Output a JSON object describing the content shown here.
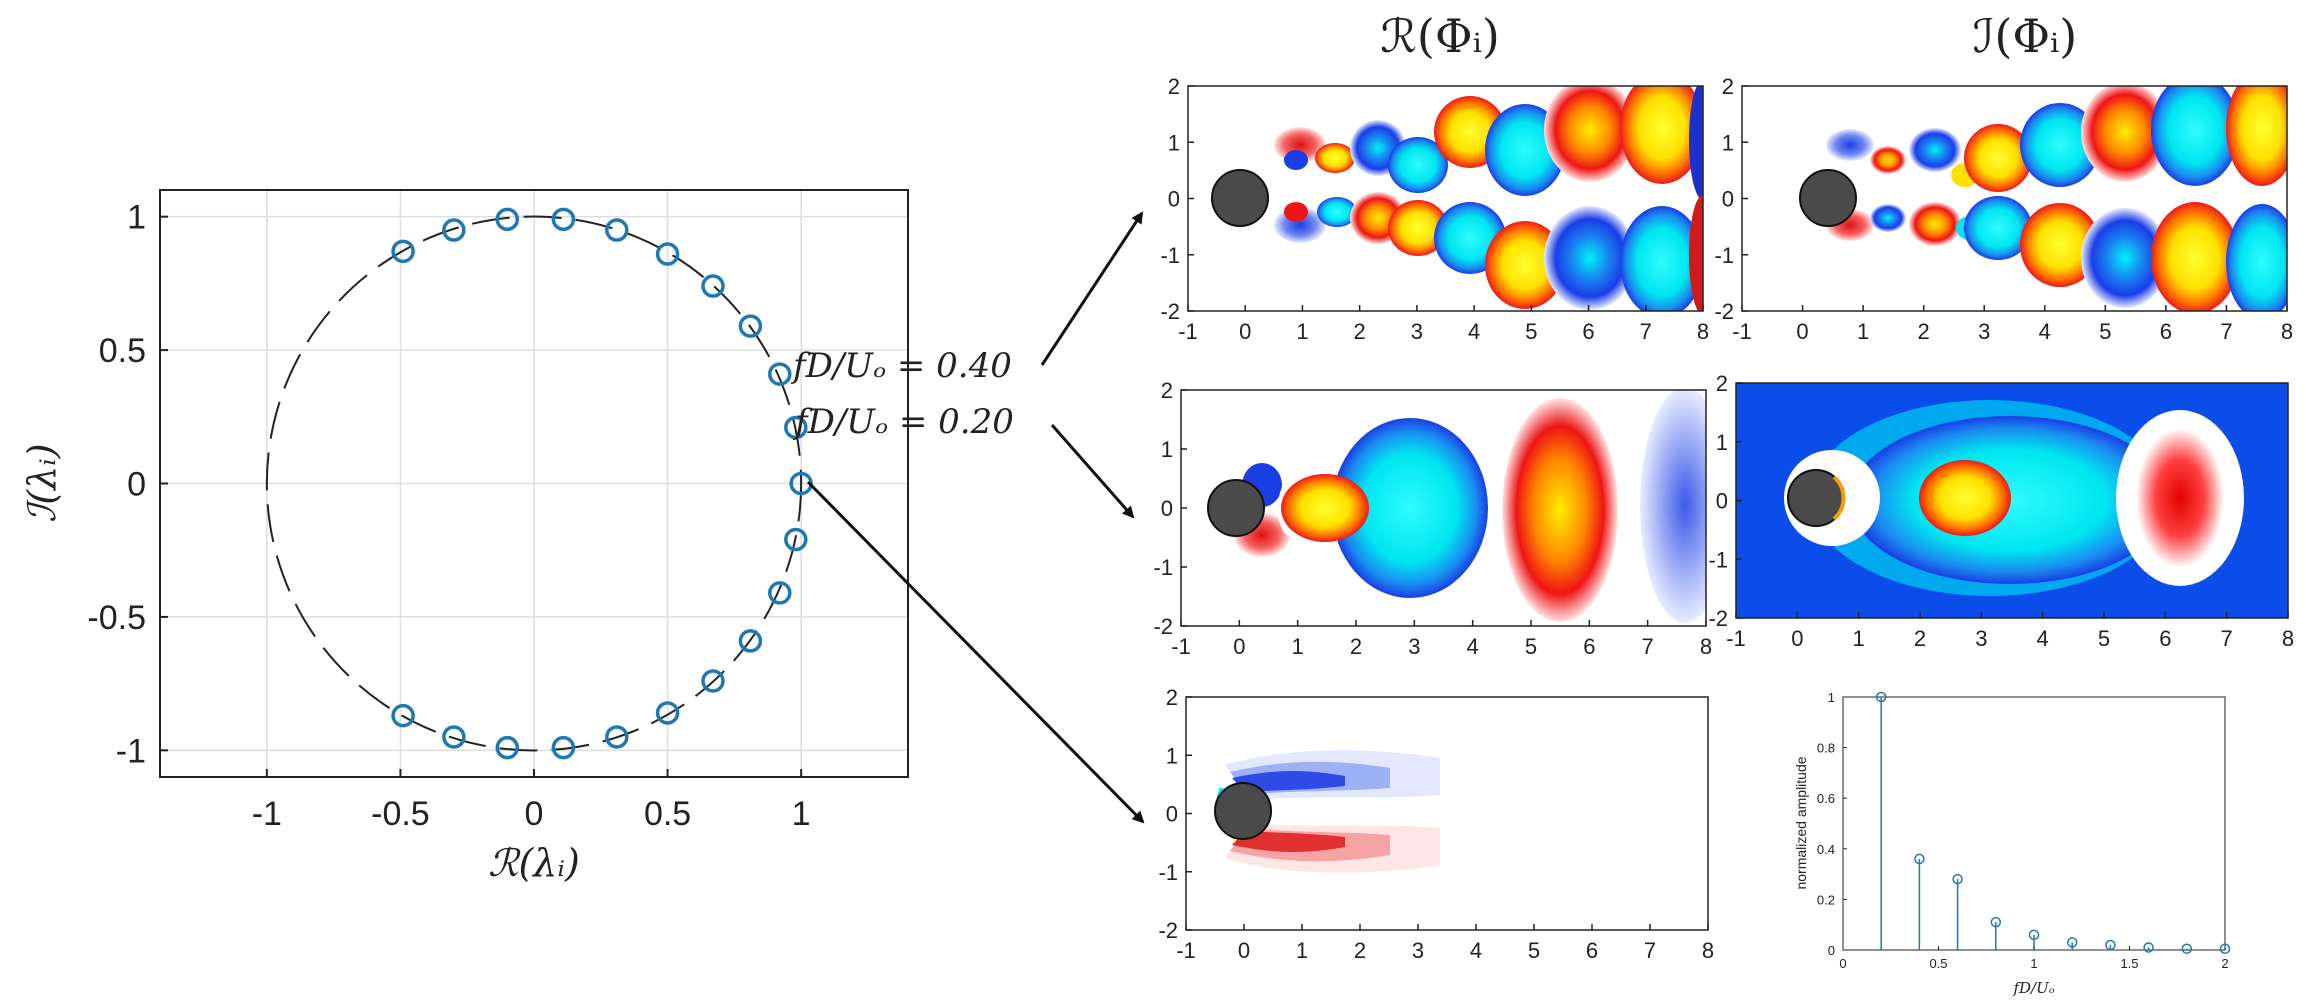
{
  "chart_data": [
    {
      "type": "scatter",
      "id": "eigenvalue-circle",
      "xlabel": "ℛ(λᵢ)",
      "ylabel": "ℐ(λᵢ)",
      "xlim": [
        -1.4,
        1.4
      ],
      "ylim": [
        -1.1,
        1.1
      ],
      "xticks": [
        -1,
        -0.5,
        0,
        0.5,
        1
      ],
      "yticks": [
        -1,
        -0.5,
        0,
        0.5,
        1
      ],
      "grid": true,
      "unit_circle": "dashed",
      "points": [
        {
          "x": 1.0,
          "y": 0.0
        },
        {
          "x": 0.98,
          "y": 0.21
        },
        {
          "x": 0.98,
          "y": -0.21
        },
        {
          "x": 0.92,
          "y": 0.41
        },
        {
          "x": 0.92,
          "y": -0.41
        },
        {
          "x": 0.81,
          "y": 0.59
        },
        {
          "x": 0.81,
          "y": -0.59
        },
        {
          "x": 0.67,
          "y": 0.74
        },
        {
          "x": 0.67,
          "y": -0.74
        },
        {
          "x": 0.5,
          "y": 0.86
        },
        {
          "x": 0.5,
          "y": -0.86
        },
        {
          "x": 0.31,
          "y": 0.95
        },
        {
          "x": 0.31,
          "y": -0.95
        },
        {
          "x": 0.11,
          "y": 0.99
        },
        {
          "x": 0.11,
          "y": -0.99
        },
        {
          "x": -0.1,
          "y": 0.99
        },
        {
          "x": -0.1,
          "y": -0.99
        },
        {
          "x": -0.3,
          "y": 0.95
        },
        {
          "x": -0.3,
          "y": -0.95
        },
        {
          "x": -0.49,
          "y": 0.87
        },
        {
          "x": -0.49,
          "y": -0.87
        }
      ],
      "annotations": [
        "fD/Uₒ = 0.40",
        "fD/Uₒ = 0.20"
      ]
    },
    {
      "type": "bar",
      "id": "amplitude-stem",
      "xlabel": "fD/Uₒ",
      "ylabel": "normalized amplitude",
      "xlim": [
        0,
        2
      ],
      "ylim": [
        0,
        1
      ],
      "xticks": [
        "0",
        "0.5",
        "1",
        "1.5",
        "2"
      ],
      "yticks": [
        "0",
        "0.2",
        "0.4",
        "0.6",
        "0.8",
        "1"
      ],
      "categories": [
        0.2,
        0.4,
        0.6,
        0.8,
        1.0,
        1.2,
        1.4,
        1.6,
        1.8,
        2.0
      ],
      "values": [
        1.0,
        0.36,
        0.28,
        0.11,
        0.06,
        0.03,
        0.02,
        0.01,
        0.005,
        0.005
      ]
    },
    {
      "type": "heatmap",
      "id": "mode-fields",
      "column_titles": [
        "ℛ(Φᵢ)",
        "ℐ(Φᵢ)"
      ],
      "xticks": [
        "-1",
        "0",
        "1",
        "2",
        "3",
        "4",
        "5",
        "6",
        "7",
        "8"
      ],
      "yticks": [
        "2",
        "1",
        "0",
        "-1",
        "-2"
      ],
      "xlim": [
        -1,
        8
      ],
      "ylim": [
        -2,
        2
      ],
      "panels": [
        "real-mode-0.40",
        "imag-mode-0.40",
        "real-mode-0.20",
        "imag-mode-0.20",
        "mean-mode"
      ]
    }
  ],
  "colors": {
    "marker": "#1f77b4",
    "cylinder": "#4a4a4a",
    "red": "#ee1111",
    "yellow": "#ffee00",
    "blue": "#1a3ee6",
    "cyan": "#00e6f0"
  }
}
